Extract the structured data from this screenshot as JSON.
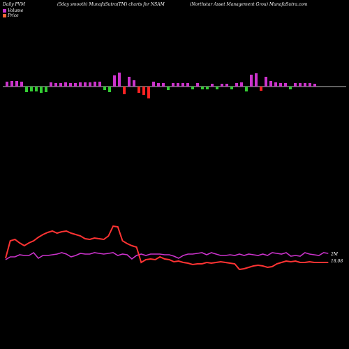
{
  "header": {
    "left": "Daily PVM",
    "middle": "(5day smooth) MunafaSutra(TM) charts for NSAM",
    "right": "(Northstar Asset Management Grou) MunafaSutra.com"
  },
  "legend": {
    "volume_label": "Volume",
    "price_label": "Price",
    "volume_color": "#cc33cc",
    "price_color": "#ff6633"
  },
  "chart_data": [
    {
      "type": "bar",
      "title": "",
      "axis": "centered at zero",
      "colors": {
        "up": "#cc33cc",
        "down_red": "#ff2222",
        "down_green": "#33cc33"
      },
      "series": [
        {
          "values": [
            {
              "v": 0.7,
              "c": "up"
            },
            {
              "v": 0.8,
              "c": "up"
            },
            {
              "v": 0.8,
              "c": "up"
            },
            {
              "v": 0.7,
              "c": "up"
            },
            {
              "v": -0.8,
              "c": "down_green"
            },
            {
              "v": -0.7,
              "c": "down_green"
            },
            {
              "v": -0.7,
              "c": "down_green"
            },
            {
              "v": -0.9,
              "c": "down_green"
            },
            {
              "v": -0.8,
              "c": "down_green"
            },
            {
              "v": 0.6,
              "c": "up"
            },
            {
              "v": 0.5,
              "c": "up"
            },
            {
              "v": 0.5,
              "c": "up"
            },
            {
              "v": 0.6,
              "c": "up"
            },
            {
              "v": 0.5,
              "c": "up"
            },
            {
              "v": 0.5,
              "c": "up"
            },
            {
              "v": 0.6,
              "c": "up"
            },
            {
              "v": 0.6,
              "c": "up"
            },
            {
              "v": 0.6,
              "c": "up"
            },
            {
              "v": 0.7,
              "c": "up"
            },
            {
              "v": 0.7,
              "c": "up"
            },
            {
              "v": -0.5,
              "c": "down_green"
            },
            {
              "v": -0.8,
              "c": "down_green"
            },
            {
              "v": 1.6,
              "c": "up"
            },
            {
              "v": 2.0,
              "c": "up"
            },
            {
              "v": -1.1,
              "c": "down_red"
            },
            {
              "v": 1.4,
              "c": "up"
            },
            {
              "v": 0.9,
              "c": "up"
            },
            {
              "v": -0.9,
              "c": "down_red"
            },
            {
              "v": -1.2,
              "c": "down_red"
            },
            {
              "v": -1.7,
              "c": "down_red"
            },
            {
              "v": 0.7,
              "c": "up"
            },
            {
              "v": 0.5,
              "c": "up"
            },
            {
              "v": 0.5,
              "c": "up"
            },
            {
              "v": -0.5,
              "c": "down_green"
            },
            {
              "v": 0.5,
              "c": "up"
            },
            {
              "v": 0.5,
              "c": "up"
            },
            {
              "v": 0.5,
              "c": "up"
            },
            {
              "v": 0.5,
              "c": "up"
            },
            {
              "v": -0.4,
              "c": "down_green"
            },
            {
              "v": 0.5,
              "c": "up"
            },
            {
              "v": -0.4,
              "c": "down_green"
            },
            {
              "v": -0.4,
              "c": "down_green"
            },
            {
              "v": 0.4,
              "c": "up"
            },
            {
              "v": -0.4,
              "c": "down_green"
            },
            {
              "v": 0.4,
              "c": "up"
            },
            {
              "v": 0.4,
              "c": "up"
            },
            {
              "v": -0.4,
              "c": "down_green"
            },
            {
              "v": 0.5,
              "c": "up"
            },
            {
              "v": 0.6,
              "c": "up"
            },
            {
              "v": -0.7,
              "c": "down_green"
            },
            {
              "v": 1.7,
              "c": "up"
            },
            {
              "v": 1.9,
              "c": "up"
            },
            {
              "v": -0.6,
              "c": "down_red"
            },
            {
              "v": 1.4,
              "c": "up"
            },
            {
              "v": 0.8,
              "c": "up"
            },
            {
              "v": 0.6,
              "c": "up"
            },
            {
              "v": 0.5,
              "c": "up"
            },
            {
              "v": 0.5,
              "c": "up"
            },
            {
              "v": -0.4,
              "c": "down_green"
            },
            {
              "v": 0.5,
              "c": "up"
            },
            {
              "v": 0.5,
              "c": "up"
            },
            {
              "v": 0.5,
              "c": "up"
            },
            {
              "v": 0.5,
              "c": "up"
            },
            {
              "v": 0.4,
              "c": "up"
            }
          ]
        }
      ]
    },
    {
      "type": "line",
      "title": "",
      "labels": {
        "volume_end": "2M",
        "price_end": "18.08"
      },
      "series": [
        {
          "name": "Volume",
          "color": "#cc33cc",
          "values": [
            372,
            368,
            368,
            365,
            366,
            366,
            362,
            370,
            366,
            366,
            365,
            364,
            362,
            364,
            368,
            366,
            363,
            364,
            364,
            362,
            363,
            364,
            363,
            362,
            366,
            364,
            365,
            371,
            366,
            364,
            366,
            364,
            364,
            364,
            365,
            365,
            367,
            370,
            366,
            364,
            364,
            363,
            362,
            365,
            362,
            364,
            366,
            366,
            365,
            366,
            364,
            366,
            364,
            365,
            366,
            364,
            366,
            362,
            363,
            364,
            362,
            367,
            366,
            367,
            362,
            364,
            365,
            366,
            362,
            363
          ]
        },
        {
          "name": "Price",
          "color": "#ff3333",
          "values": [
            370,
            345,
            343,
            348,
            352,
            348,
            345,
            340,
            336,
            333,
            331,
            334,
            332,
            331,
            334,
            336,
            338,
            342,
            343,
            341,
            342,
            343,
            338,
            324,
            325,
            345,
            349,
            352,
            354,
            376,
            372,
            371,
            372,
            368,
            371,
            372,
            375,
            374,
            376,
            377,
            379,
            378,
            378,
            376,
            377,
            376,
            375,
            376,
            377,
            378,
            386,
            385,
            383,
            381,
            380,
            381,
            383,
            382,
            378,
            376,
            374,
            375,
            374,
            376,
            376,
            375,
            376,
            376,
            376,
            376
          ]
        }
      ]
    }
  ]
}
